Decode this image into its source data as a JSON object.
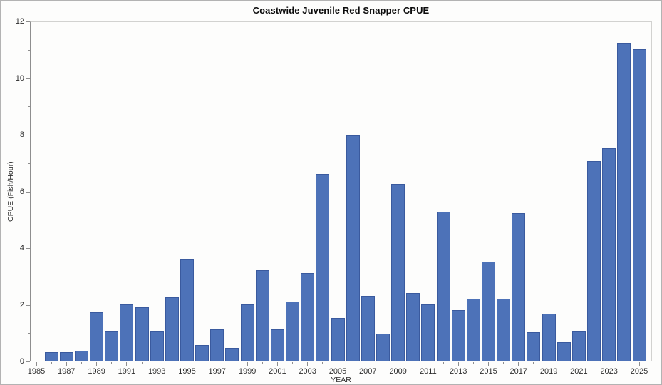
{
  "window": {
    "title": "Coastwide Juvenile Red Snapper CPUE"
  },
  "chart_data": {
    "type": "bar",
    "title": "Coastwide Juvenile Red Snapper CPUE",
    "xlabel": "YEAR",
    "ylabel": "CPUE (Fish/Hour)",
    "ylim": [
      0,
      12
    ],
    "yticks": [
      0,
      2,
      4,
      6,
      8,
      10,
      12
    ],
    "x_range": [
      1985,
      2025
    ],
    "x_label_years": [
      "1985",
      "1987",
      "1989",
      "1991",
      "1993",
      "1995",
      "1997",
      "1999",
      "2001",
      "2003",
      "2005",
      "2007",
      "2009",
      "2011",
      "2013",
      "2015",
      "2017",
      "2019",
      "2021",
      "2023",
      "2025"
    ],
    "grid": false,
    "legend_position": "none",
    "bar_color": "#4d72b8",
    "bar_border_color": "#3a5a9e",
    "categories": [
      1986,
      1987,
      1988,
      1989,
      1990,
      1991,
      1992,
      1993,
      1994,
      1995,
      1996,
      1997,
      1998,
      1999,
      2000,
      2001,
      2002,
      2003,
      2004,
      2005,
      2006,
      2007,
      2008,
      2009,
      2010,
      2011,
      2012,
      2013,
      2014,
      2015,
      2016,
      2017,
      2018,
      2019,
      2020,
      2021,
      2022,
      2023,
      2024,
      2025
    ],
    "values": [
      0.3,
      0.3,
      0.35,
      1.7,
      1.05,
      2.0,
      1.9,
      1.05,
      2.25,
      3.6,
      0.55,
      1.1,
      0.45,
      2.0,
      3.2,
      1.1,
      2.1,
      3.1,
      6.6,
      1.5,
      7.95,
      2.3,
      0.95,
      6.25,
      2.4,
      2.0,
      5.25,
      1.8,
      2.2,
      3.5,
      2.2,
      5.2,
      1.0,
      1.65,
      0.65,
      1.05,
      7.05,
      7.5,
      11.2,
      11.0
    ]
  }
}
